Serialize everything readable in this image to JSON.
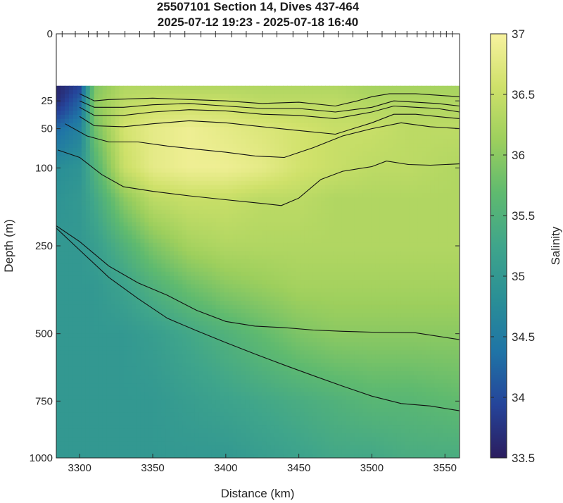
{
  "chart_data": {
    "type": "heatmap",
    "title": "25507101 Section 14, Dives 437-464",
    "subtitle": "2025-07-12 19:23 - 2025-07-18 16:40",
    "xlabel": "Distance (km)",
    "ylabel": "Depth (m)",
    "colorbar_label": "Salinity",
    "xlim": [
      3284,
      3560
    ],
    "ylim": [
      0,
      1000
    ],
    "y_scale": "sqrt",
    "x_ticks": [
      3300,
      3350,
      3400,
      3450,
      3500,
      3550
    ],
    "y_ticks": [
      0,
      25,
      50,
      100,
      250,
      500,
      750,
      1000
    ],
    "colorbar_range": [
      33.5,
      37
    ],
    "colorbar_ticks": [
      33.5,
      34,
      34.5,
      35,
      35.5,
      36,
      36.5,
      37
    ],
    "colormap": [
      "#2b1d5e",
      "#25449a",
      "#1f74a6",
      "#2a8f96",
      "#3fa58b",
      "#5fba6f",
      "#9dcf5d",
      "#cfe16a",
      "#f7f29f"
    ],
    "data_top_depth": 15,
    "dive_positions_km": [
      3288,
      3297,
      3306,
      3312,
      3320,
      3331,
      3341,
      3351,
      3362,
      3372,
      3383,
      3393,
      3404,
      3414,
      3425,
      3435,
      3446,
      3456,
      3467,
      3477,
      3487,
      3497,
      3507,
      3516,
      3524,
      3531,
      3537,
      3542,
      3547,
      3551,
      3555
    ],
    "salinity_field_description_values": {
      "x_km": [
        3285,
        3300,
        3310,
        3330,
        3350,
        3375,
        3400,
        3425,
        3450,
        3475,
        3500,
        3525,
        3560
      ],
      "depth_m": [
        15,
        25,
        50,
        100,
        150,
        250,
        350,
        500,
        750,
        1000
      ],
      "salinity": [
        [
          33.6,
          33.9,
          35.9,
          36.3,
          36.3,
          36.3,
          36.3,
          36.3,
          36.3,
          36.3,
          36.2,
          36.2,
          36.2
        ],
        [
          33.7,
          34.2,
          36.0,
          36.4,
          36.5,
          36.5,
          36.5,
          36.4,
          36.4,
          36.4,
          36.3,
          36.3,
          36.3
        ],
        [
          34.3,
          34.6,
          35.8,
          36.6,
          36.8,
          36.9,
          36.8,
          36.7,
          36.6,
          36.5,
          36.5,
          36.4,
          36.4
        ],
        [
          34.8,
          34.9,
          35.5,
          36.5,
          36.8,
          36.9,
          36.9,
          36.8,
          36.6,
          36.5,
          36.4,
          36.4,
          36.3
        ],
        [
          34.9,
          35.0,
          35.3,
          36.0,
          36.4,
          36.5,
          36.5,
          36.4,
          36.4,
          36.3,
          36.3,
          36.3,
          36.3
        ],
        [
          35.0,
          35.0,
          35.1,
          35.5,
          35.9,
          36.2,
          36.3,
          36.3,
          36.3,
          36.3,
          36.3,
          36.3,
          36.3
        ],
        [
          35.0,
          35.0,
          35.0,
          35.2,
          35.5,
          35.8,
          36.0,
          36.1,
          36.2,
          36.2,
          36.2,
          36.2,
          36.2
        ],
        [
          35.0,
          35.0,
          35.0,
          35.0,
          35.1,
          35.3,
          35.5,
          35.7,
          35.9,
          36.0,
          36.0,
          36.0,
          36.0
        ],
        [
          35.0,
          35.0,
          35.0,
          35.0,
          35.0,
          35.1,
          35.2,
          35.3,
          35.4,
          35.5,
          35.6,
          35.6,
          35.7
        ],
        [
          35.0,
          35.0,
          35.0,
          35.0,
          35.0,
          35.0,
          35.0,
          35.1,
          35.2,
          35.3,
          35.3,
          35.4,
          35.4
        ]
      ]
    },
    "contours": [
      {
        "x": [
          3300,
          3310,
          3320,
          3350,
          3375,
          3400,
          3425,
          3450,
          3475,
          3490,
          3500,
          3512,
          3530,
          3545,
          3560
        ],
        "depth": [
          20,
          25,
          24,
          23,
          24,
          25,
          27,
          26,
          29,
          25,
          22,
          20,
          20,
          21,
          22
        ]
      },
      {
        "x": [
          3300,
          3310,
          3330,
          3350,
          3375,
          3400,
          3425,
          3450,
          3475,
          3500,
          3515,
          3530,
          3545,
          3560
        ],
        "depth": [
          25,
          30,
          30,
          28,
          27,
          29,
          31,
          31,
          34,
          30,
          25,
          26,
          27,
          29
        ]
      },
      {
        "x": [
          3300,
          3310,
          3330,
          3350,
          3375,
          3400,
          3425,
          3450,
          3475,
          3500,
          3515,
          3530,
          3545,
          3560
        ],
        "depth": [
          30,
          37,
          37,
          34,
          32,
          33,
          36,
          37,
          40,
          34,
          29,
          30,
          31,
          34
        ]
      },
      {
        "x": [
          3300,
          3310,
          3330,
          3350,
          3375,
          3400,
          3425,
          3450,
          3475,
          3500,
          3515,
          3530,
          3545,
          3560
        ],
        "depth": [
          38,
          47,
          48,
          45,
          42,
          44,
          48,
          52,
          56,
          44,
          36,
          36,
          38,
          40
        ]
      },
      {
        "x": [
          3290,
          3305,
          3320,
          3340,
          3360,
          3380,
          3400,
          3420,
          3440,
          3460,
          3480,
          3500,
          3520,
          3540,
          3560
        ],
        "depth": [
          45,
          58,
          65,
          65,
          70,
          74,
          78,
          83,
          85,
          72,
          58,
          50,
          44,
          48,
          50
        ]
      },
      {
        "x": [
          3285,
          3300,
          3315,
          3330,
          3350,
          3375,
          3400,
          3425,
          3438,
          3450,
          3465,
          3480,
          3500,
          3510,
          3525,
          3540,
          3560
        ],
        "depth": [
          75,
          85,
          110,
          130,
          138,
          146,
          153,
          160,
          164,
          150,
          118,
          105,
          98,
          90,
          95,
          96,
          94
        ]
      },
      {
        "x": [
          3284,
          3300,
          3320,
          3340,
          3360,
          3380,
          3400,
          3420,
          3440,
          3460,
          3480,
          3500,
          3530,
          3560
        ],
        "depth": [
          205,
          240,
          300,
          345,
          380,
          425,
          460,
          475,
          480,
          488,
          492,
          495,
          497,
          520
        ]
      },
      {
        "x": [
          3284,
          3300,
          3320,
          3340,
          3360,
          3380,
          3400,
          3420,
          3440,
          3460,
          3480,
          3500,
          3520,
          3540,
          3560
        ],
        "depth": [
          210,
          260,
          330,
          390,
          450,
          490,
          530,
          570,
          610,
          650,
          690,
          730,
          760,
          770,
          790
        ]
      }
    ]
  }
}
